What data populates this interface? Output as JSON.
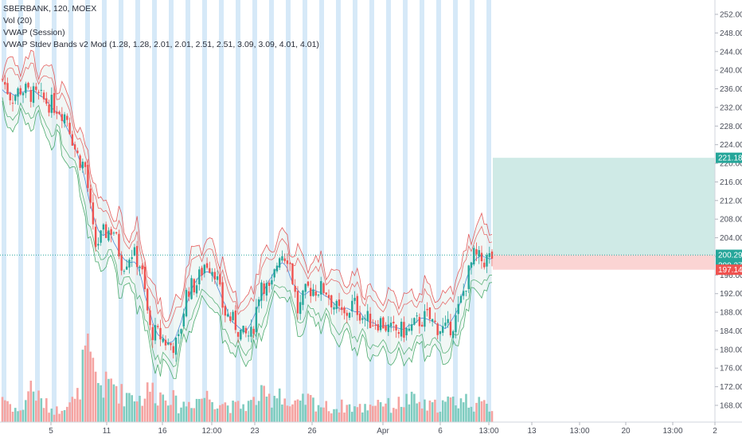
{
  "legend": {
    "symbol": "SBERBANK, 120, MOEX",
    "vol": "Vol (20)",
    "vwap": "VWAP (Session)",
    "bands": "VWAP Stdev Bands v2 Mod (1.28, 1.28, 2.01, 2.01, 2.51, 2.51, 3.09, 3.09, 4.01, 4.01)"
  },
  "colors": {
    "up": "#26a69a",
    "down": "#ef5350",
    "vol_up": "#7fccc0",
    "vol_down": "#f5a3a1",
    "session_band": "#d6e9f8",
    "target_zone": "#cfeae6",
    "stop_zone": "#fbd4d3",
    "band_upper": "#e34b4b",
    "band_lower": "#3aa35f",
    "vwap": "#3f7fd9",
    "dotted_line": "#26a69a"
  },
  "chart_data": {
    "type": "candlestick",
    "price_axis": {
      "ticks": [
        168.0,
        172.0,
        176.0,
        180.0,
        184.0,
        188.0,
        192.0,
        196.0,
        200.0,
        204.0,
        208.0,
        212.0,
        216.0,
        220.0,
        224.0,
        228.0,
        232.0,
        236.0,
        240.0,
        244.0,
        248.0,
        252.0
      ],
      "ylim": [
        166.0,
        253.5
      ]
    },
    "time_axis": [
      "5",
      "11",
      "16",
      "12:00",
      "23",
      "26",
      "Apr",
      "6",
      "13:00",
      "13",
      "13:00",
      "20",
      "13:00",
      "2"
    ],
    "price_labels": [
      {
        "text": "221.18",
        "value": 221.18,
        "color": "#26a69a"
      },
      {
        "text": "200.29",
        "value": 200.29,
        "color": "#26a69a"
      },
      {
        "text": "200.27",
        "value": 200.27,
        "color": "#26a69a"
      },
      {
        "text": "197.14",
        "value": 197.14,
        "color": "#ef5350"
      }
    ],
    "position": {
      "entry": 200.29,
      "target": 221.18,
      "stop": 197.14
    },
    "close_path": [
      238,
      234,
      236,
      235,
      234,
      233,
      232,
      230,
      222,
      219,
      202,
      205,
      206,
      198,
      201,
      198,
      184,
      183,
      181,
      181,
      193,
      194,
      199,
      197,
      188,
      186,
      183,
      183,
      195,
      192,
      201,
      200,
      188,
      193,
      193,
      193,
      189,
      187,
      190,
      187,
      186,
      186,
      184,
      184,
      184,
      186,
      187,
      185,
      184,
      186,
      193,
      200,
      199,
      200
    ],
    "volume_path": [
      0.35,
      0.22,
      0.12,
      0.5,
      0.3,
      0.2,
      0.15,
      0.3,
      0.25,
      0.9,
      0.6,
      0.45,
      0.55,
      0.35,
      0.4,
      0.3,
      0.45,
      0.35,
      0.4,
      0.2,
      0.25,
      0.3,
      0.35,
      0.3,
      0.25,
      0.2,
      0.22,
      0.25,
      0.35,
      0.3,
      0.45,
      0.2,
      0.22,
      0.3,
      0.25,
      0.2,
      0.18,
      0.22,
      0.2,
      0.18,
      0.25,
      0.3,
      0.2,
      0.25,
      0.3,
      0.25,
      0.2,
      0.22,
      0.25,
      0.28,
      0.3,
      0.25,
      0.22,
      0.2
    ]
  }
}
